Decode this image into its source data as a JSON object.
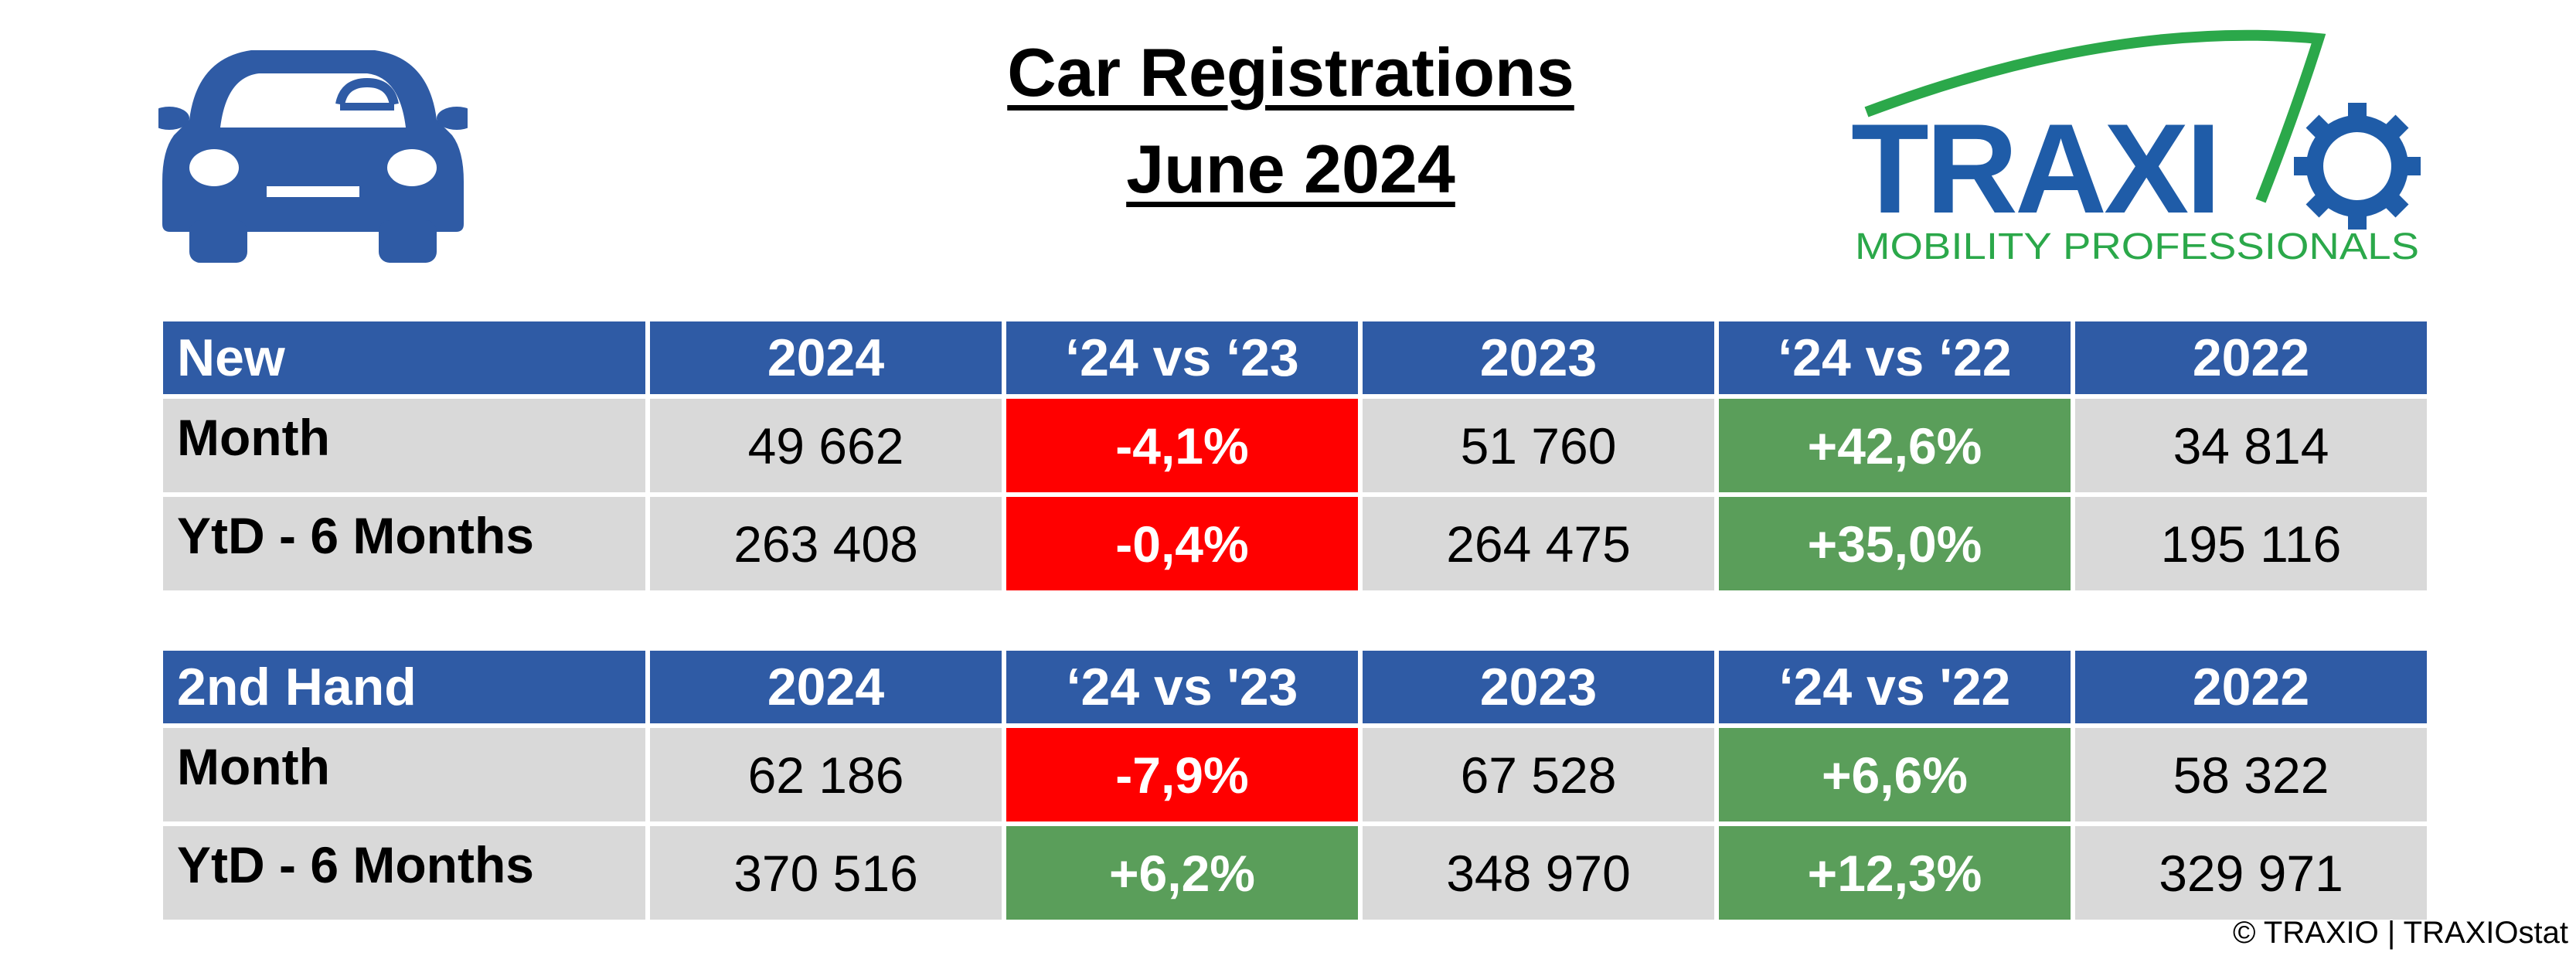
{
  "title": {
    "line1": "Car Registrations",
    "line2": "June 2024"
  },
  "logo": {
    "icon": "car-icon",
    "brand": "TRAXIO",
    "tagline": "MOBILITY PROFESSIONALS",
    "colors": {
      "blue": "#1F5CA8",
      "green": "#2BA84A"
    }
  },
  "colors": {
    "header": "#2F5BA5",
    "cell": "#D9D9D9",
    "negative": "#FF0000",
    "positive": "#5A9E5A"
  },
  "tables": [
    {
      "header": [
        "New",
        "2024",
        "‘24 vs ‘23",
        "2023",
        "‘24 vs ‘22",
        "2022"
      ],
      "rows": [
        {
          "label": "Month",
          "values": [
            "49 662",
            "-4,1%",
            "51 760",
            "+42,6%",
            "34 814"
          ]
        },
        {
          "label": "YtD - 6 Months",
          "values": [
            "263 408",
            "-0,4%",
            "264 475",
            "+35,0%",
            "195 116"
          ]
        }
      ]
    },
    {
      "header": [
        "2nd Hand",
        "2024",
        "‘24 vs '23",
        "2023",
        "‘24 vs '22",
        "2022"
      ],
      "rows": [
        {
          "label": "Month",
          "values": [
            "62 186",
            "-7,9%",
            "67 528",
            "+6,6%",
            "58 322"
          ]
        },
        {
          "label": "YtD - 6 Months",
          "values": [
            "370 516",
            "+6,2%",
            "348 970",
            "+12,3%",
            "329 971"
          ]
        }
      ]
    }
  ],
  "footer": {
    "copyright": "© TRAXIO | TRAXIOstat"
  }
}
